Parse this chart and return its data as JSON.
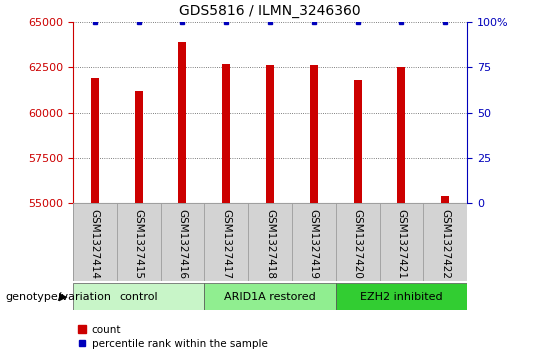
{
  "title": "GDS5816 / ILMN_3246360",
  "samples": [
    "GSM1327414",
    "GSM1327415",
    "GSM1327416",
    "GSM1327417",
    "GSM1327418",
    "GSM1327419",
    "GSM1327420",
    "GSM1327421",
    "GSM1327422"
  ],
  "counts": [
    61900,
    61200,
    63900,
    62700,
    62600,
    62600,
    61800,
    62500,
    55400
  ],
  "percentile_ranks": [
    100,
    100,
    100,
    100,
    100,
    100,
    100,
    100,
    100
  ],
  "groups": [
    {
      "label": "control",
      "indices": [
        0,
        1,
        2
      ],
      "color": "#c8f5c8"
    },
    {
      "label": "ARID1A restored",
      "indices": [
        3,
        4,
        5
      ],
      "color": "#90ee90"
    },
    {
      "label": "EZH2 inhibited",
      "indices": [
        6,
        7,
        8
      ],
      "color": "#32cd32"
    }
  ],
  "bar_color": "#cc0000",
  "percentile_color": "#0000bb",
  "ylim_left": [
    55000,
    65000
  ],
  "yticks_left": [
    55000,
    57500,
    60000,
    62500,
    65000
  ],
  "ylim_right": [
    0,
    100
  ],
  "yticks_right": [
    0,
    25,
    50,
    75,
    100
  ],
  "yticklabels_right": [
    "0",
    "25",
    "50",
    "75",
    "100%"
  ],
  "bar_width": 0.18,
  "tick_color_left": "#cc0000",
  "tick_color_right": "#0000bb",
  "group_row_label": "genotype/variation",
  "legend_count_label": "count",
  "legend_percentile_label": "percentile rank within the sample",
  "background_color": "#ffffff",
  "plot_bg_color": "#ffffff",
  "grid_color": "#555555",
  "sample_bg_color": "#d3d3d3"
}
